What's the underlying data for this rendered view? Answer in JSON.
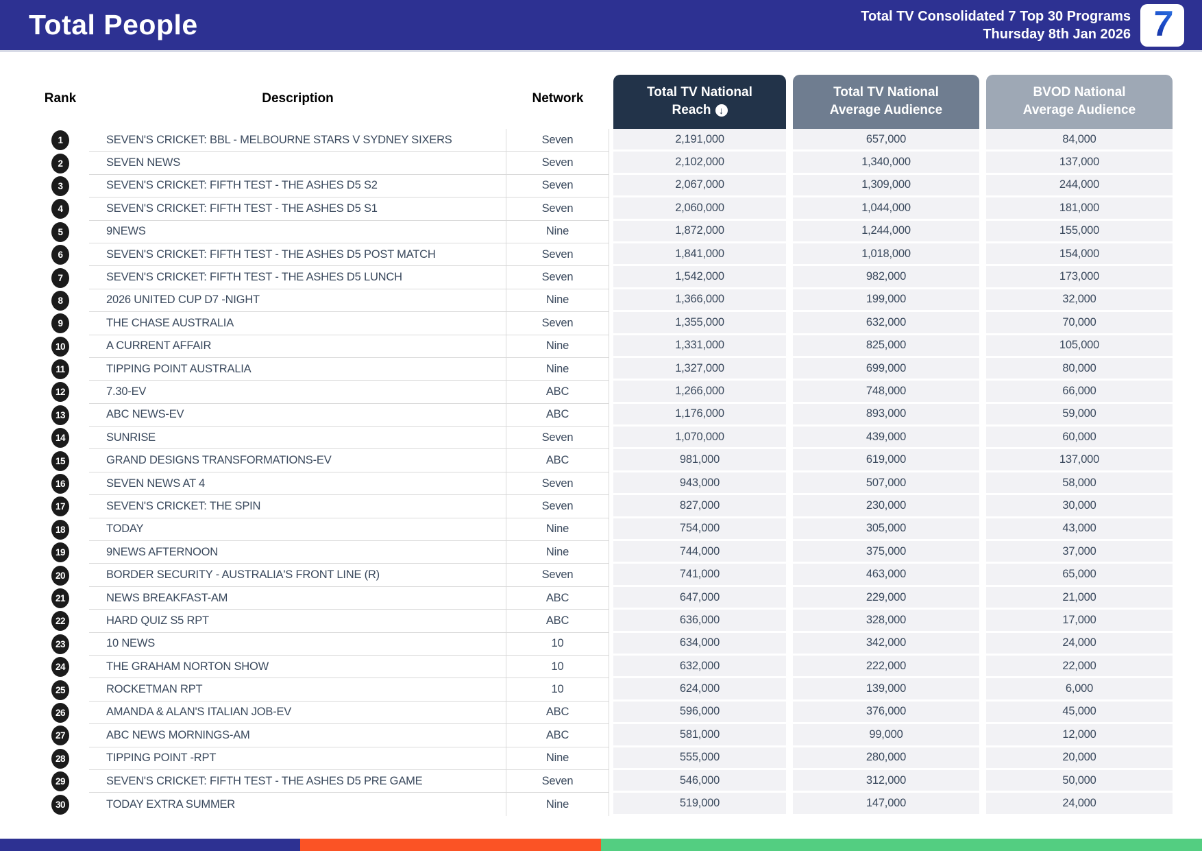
{
  "header": {
    "title": "Total People",
    "report_line1": "Total TV Consolidated 7 Top 30 Programs",
    "report_line2": "Thursday 8th Jan 2026",
    "logo_text": "7",
    "background_color": "#2d3192"
  },
  "table": {
    "columns": {
      "rank": "Rank",
      "description": "Description",
      "network": "Network",
      "reach_line1": "Total TV National",
      "reach_line2": "Reach",
      "avg_line1": "Total TV National",
      "avg_line2": "Average Audience",
      "bvod_line1": "BVOD National",
      "bvod_line2": "Average Audience"
    },
    "sort_icon": "↓",
    "header_colors": {
      "reach": "#223349",
      "avg": "#6f7d90",
      "bvod": "#9ea8b5"
    },
    "rows": [
      {
        "rank": "1",
        "description": "SEVEN'S CRICKET: BBL - MELBOURNE STARS V SYDNEY SIXERS",
        "network": "Seven",
        "reach": "2,191,000",
        "avg_audience": "657,000",
        "bvod_audience": "84,000"
      },
      {
        "rank": "2",
        "description": "SEVEN NEWS",
        "network": "Seven",
        "reach": "2,102,000",
        "avg_audience": "1,340,000",
        "bvod_audience": "137,000"
      },
      {
        "rank": "3",
        "description": "SEVEN'S CRICKET: FIFTH TEST - THE ASHES D5 S2",
        "network": "Seven",
        "reach": "2,067,000",
        "avg_audience": "1,309,000",
        "bvod_audience": "244,000"
      },
      {
        "rank": "4",
        "description": "SEVEN'S CRICKET: FIFTH TEST - THE ASHES D5 S1",
        "network": "Seven",
        "reach": "2,060,000",
        "avg_audience": "1,044,000",
        "bvod_audience": "181,000"
      },
      {
        "rank": "5",
        "description": "9NEWS",
        "network": "Nine",
        "reach": "1,872,000",
        "avg_audience": "1,244,000",
        "bvod_audience": "155,000"
      },
      {
        "rank": "6",
        "description": "SEVEN'S CRICKET: FIFTH TEST - THE ASHES D5 POST MATCH",
        "network": "Seven",
        "reach": "1,841,000",
        "avg_audience": "1,018,000",
        "bvod_audience": "154,000"
      },
      {
        "rank": "7",
        "description": "SEVEN'S CRICKET: FIFTH TEST - THE ASHES D5 LUNCH",
        "network": "Seven",
        "reach": "1,542,000",
        "avg_audience": "982,000",
        "bvod_audience": "173,000"
      },
      {
        "rank": "8",
        "description": "2026 UNITED CUP D7 -NIGHT",
        "network": "Nine",
        "reach": "1,366,000",
        "avg_audience": "199,000",
        "bvod_audience": "32,000"
      },
      {
        "rank": "9",
        "description": "THE CHASE AUSTRALIA",
        "network": "Seven",
        "reach": "1,355,000",
        "avg_audience": "632,000",
        "bvod_audience": "70,000"
      },
      {
        "rank": "10",
        "description": "A CURRENT AFFAIR",
        "network": "Nine",
        "reach": "1,331,000",
        "avg_audience": "825,000",
        "bvod_audience": "105,000"
      },
      {
        "rank": "11",
        "description": "TIPPING POINT AUSTRALIA",
        "network": "Nine",
        "reach": "1,327,000",
        "avg_audience": "699,000",
        "bvod_audience": "80,000"
      },
      {
        "rank": "12",
        "description": "7.30-EV",
        "network": "ABC",
        "reach": "1,266,000",
        "avg_audience": "748,000",
        "bvod_audience": "66,000"
      },
      {
        "rank": "13",
        "description": "ABC NEWS-EV",
        "network": "ABC",
        "reach": "1,176,000",
        "avg_audience": "893,000",
        "bvod_audience": "59,000"
      },
      {
        "rank": "14",
        "description": "SUNRISE",
        "network": "Seven",
        "reach": "1,070,000",
        "avg_audience": "439,000",
        "bvod_audience": "60,000"
      },
      {
        "rank": "15",
        "description": "GRAND DESIGNS TRANSFORMATIONS-EV",
        "network": "ABC",
        "reach": "981,000",
        "avg_audience": "619,000",
        "bvod_audience": "137,000"
      },
      {
        "rank": "16",
        "description": "SEVEN NEWS AT 4",
        "network": "Seven",
        "reach": "943,000",
        "avg_audience": "507,000",
        "bvod_audience": "58,000"
      },
      {
        "rank": "17",
        "description": "SEVEN'S CRICKET: THE SPIN",
        "network": "Seven",
        "reach": "827,000",
        "avg_audience": "230,000",
        "bvod_audience": "30,000"
      },
      {
        "rank": "18",
        "description": "TODAY",
        "network": "Nine",
        "reach": "754,000",
        "avg_audience": "305,000",
        "bvod_audience": "43,000"
      },
      {
        "rank": "19",
        "description": "9NEWS AFTERNOON",
        "network": "Nine",
        "reach": "744,000",
        "avg_audience": "375,000",
        "bvod_audience": "37,000"
      },
      {
        "rank": "20",
        "description": "BORDER SECURITY - AUSTRALIA'S FRONT LINE (R)",
        "network": "Seven",
        "reach": "741,000",
        "avg_audience": "463,000",
        "bvod_audience": "65,000"
      },
      {
        "rank": "21",
        "description": "NEWS BREAKFAST-AM",
        "network": "ABC",
        "reach": "647,000",
        "avg_audience": "229,000",
        "bvod_audience": "21,000"
      },
      {
        "rank": "22",
        "description": "HARD QUIZ S5 RPT",
        "network": "ABC",
        "reach": "636,000",
        "avg_audience": "328,000",
        "bvod_audience": "17,000"
      },
      {
        "rank": "23",
        "description": "10 NEWS",
        "network": "10",
        "reach": "634,000",
        "avg_audience": "342,000",
        "bvod_audience": "24,000"
      },
      {
        "rank": "24",
        "description": "THE GRAHAM NORTON SHOW",
        "network": "10",
        "reach": "632,000",
        "avg_audience": "222,000",
        "bvod_audience": "22,000"
      },
      {
        "rank": "25",
        "description": "ROCKETMAN RPT",
        "network": "10",
        "reach": "624,000",
        "avg_audience": "139,000",
        "bvod_audience": "6,000"
      },
      {
        "rank": "26",
        "description": "AMANDA & ALAN'S ITALIAN JOB-EV",
        "network": "ABC",
        "reach": "596,000",
        "avg_audience": "376,000",
        "bvod_audience": "45,000"
      },
      {
        "rank": "27",
        "description": "ABC NEWS MORNINGS-AM",
        "network": "ABC",
        "reach": "581,000",
        "avg_audience": "99,000",
        "bvod_audience": "12,000"
      },
      {
        "rank": "28",
        "description": "TIPPING POINT -RPT",
        "network": "Nine",
        "reach": "555,000",
        "avg_audience": "280,000",
        "bvod_audience": "20,000"
      },
      {
        "rank": "29",
        "description": "SEVEN'S CRICKET: FIFTH TEST - THE ASHES D5 PRE GAME",
        "network": "Seven",
        "reach": "546,000",
        "avg_audience": "312,000",
        "bvod_audience": "50,000"
      },
      {
        "rank": "30",
        "description": "TODAY EXTRA SUMMER",
        "network": "Nine",
        "reach": "519,000",
        "avg_audience": "147,000",
        "bvod_audience": "24,000"
      }
    ]
  },
  "footer": {
    "stripe_colors": [
      "#2d3192",
      "#fb5325",
      "#53ce81"
    ]
  }
}
